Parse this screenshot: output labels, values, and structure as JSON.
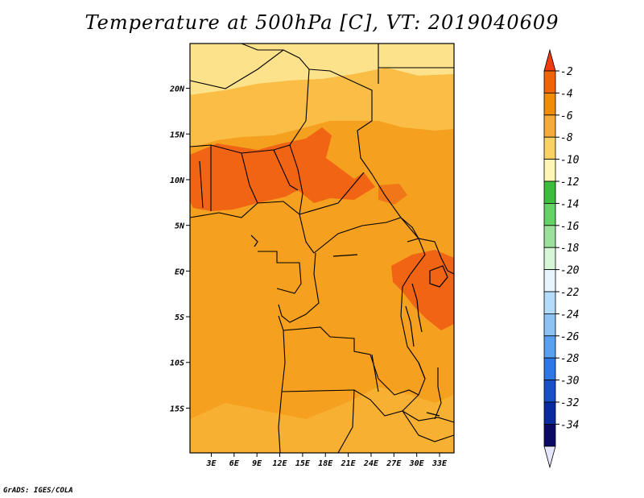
{
  "title": "Temperature at 500hPa [C], VT: 2019040609",
  "credit": "GrADS: IGES/COLA",
  "lat_ticks": [
    {
      "label": "20N",
      "lat": 20
    },
    {
      "label": "15N",
      "lat": 15
    },
    {
      "label": "10N",
      "lat": 10
    },
    {
      "label": "5N",
      "lat": 5
    },
    {
      "label": "EQ",
      "lat": 0
    },
    {
      "label": "5S",
      "lat": -5
    },
    {
      "label": "10S",
      "lat": -10
    },
    {
      "label": "15S",
      "lat": -15
    }
  ],
  "lon_ticks": [
    {
      "label": "3E",
      "lon": 3
    },
    {
      "label": "6E",
      "lon": 6
    },
    {
      "label": "9E",
      "lon": 9
    },
    {
      "label": "12E",
      "lon": 12
    },
    {
      "label": "15E",
      "lon": 15
    },
    {
      "label": "18E",
      "lon": 18
    },
    {
      "label": "21E",
      "lon": 21
    },
    {
      "label": "24E",
      "lon": 24
    },
    {
      "label": "27E",
      "lon": 27
    },
    {
      "label": "30E",
      "lon": 30
    },
    {
      "label": "33E",
      "lon": 33
    }
  ],
  "colorbar": {
    "labels": [
      "-2",
      "-4",
      "-6",
      "-8",
      "-10",
      "-12",
      "-14",
      "-16",
      "-18",
      "-20",
      "-22",
      "-24",
      "-26",
      "-28",
      "-30",
      "-32",
      "-34"
    ],
    "colors": [
      "#f03c0e",
      "#f06408",
      "#f08c08",
      "#f5aa3c",
      "#fad264",
      "#fff5b4",
      "#3cbe3c",
      "#64d264",
      "#9be19b",
      "#d7f5d7",
      "#e6f5ff",
      "#b4dcfa",
      "#8cc3f5",
      "#5aa0f0",
      "#2d78e6",
      "#1950c8",
      "#0a2aa0",
      "#0a0a64",
      "#e6e6ff"
    ]
  },
  "map_colors": {
    "neg4_6": "#f5a01e",
    "neg2_4": "#f06414",
    "neg6_8": "#fabe46",
    "neg8_10": "#fde28c"
  }
}
